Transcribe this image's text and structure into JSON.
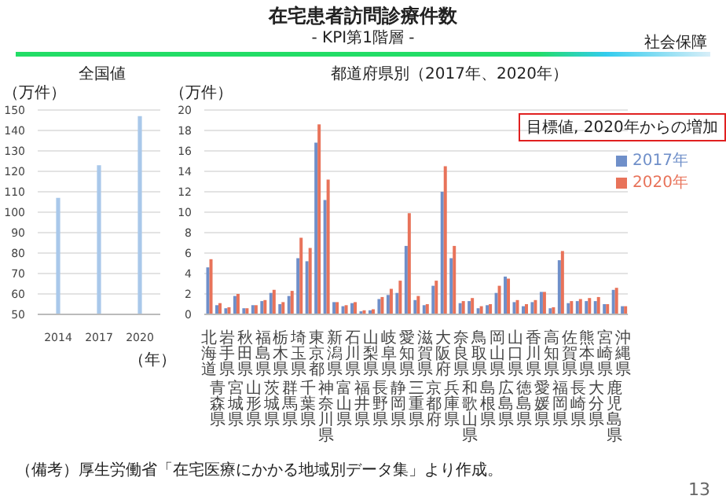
{
  "chart_data": [
    {
      "type": "bar",
      "title": "全国値",
      "ylabel": "（万件）",
      "xlabel": "（年）",
      "categories": [
        "2014",
        "2017",
        "2020"
      ],
      "values": [
        107,
        123,
        147
      ],
      "color": "#a9c8ea",
      "ylim": [
        50,
        150
      ],
      "yticks": [
        50,
        60,
        70,
        80,
        90,
        100,
        110,
        120,
        130,
        140,
        150
      ],
      "grid": "y",
      "annotations": [
        "在宅患者訪問診療件数",
        "- KPI第1階層 -",
        "社会保障"
      ]
    },
    {
      "type": "bar",
      "title": "都道府県別（2017年、2020年）",
      "ylabel": "（万件）",
      "categories": [
        "北海道",
        "青森県",
        "岩手県",
        "宮城県",
        "秋田県",
        "山形県",
        "福島県",
        "茨城県",
        "栃木県",
        "群馬県",
        "埼玉県",
        "千葉県",
        "東京都",
        "神奈川県",
        "新潟県",
        "富山県",
        "石川県",
        "福井県",
        "山梨県",
        "長野県",
        "岐阜県",
        "静岡県",
        "愛知県",
        "三重県",
        "滋賀県",
        "京都府",
        "大阪府",
        "兵庫県",
        "奈良県",
        "和歌山県",
        "鳥取県",
        "島根県",
        "岡山県",
        "広島県",
        "山口県",
        "徳島県",
        "香川県",
        "愛媛県",
        "高知県",
        "福岡県",
        "佐賀県",
        "長崎県",
        "熊本県",
        "大分県",
        "宮崎県",
        "鹿児島県",
        "沖縄県"
      ],
      "series": [
        {
          "name": "2017年",
          "color": "#6f8fc9",
          "values": [
            4.6,
            0.9,
            0.6,
            1.8,
            0.6,
            0.9,
            1.3,
            2.1,
            1.0,
            1.8,
            5.5,
            5.2,
            16.8,
            11.2,
            1.2,
            0.8,
            1.1,
            0.3,
            0.4,
            1.5,
            1.9,
            2.1,
            6.7,
            1.4,
            0.9,
            2.8,
            12.0,
            5.5,
            1.1,
            1.3,
            0.6,
            0.9,
            2.1,
            3.7,
            1.2,
            0.8,
            1.2,
            2.2,
            0.6,
            5.3,
            1.1,
            1.3,
            1.3,
            1.3,
            1.0,
            2.4,
            0.8
          ]
        },
        {
          "name": "2020年",
          "color": "#e8735a",
          "values": [
            5.4,
            1.1,
            0.7,
            2.0,
            0.6,
            0.9,
            1.4,
            2.4,
            1.2,
            2.3,
            7.5,
            6.5,
            18.6,
            13.2,
            1.2,
            0.9,
            1.2,
            0.4,
            0.5,
            1.7,
            2.5,
            3.3,
            9.9,
            1.8,
            1.0,
            3.3,
            14.5,
            6.7,
            1.3,
            1.6,
            0.8,
            1.0,
            2.8,
            3.5,
            1.4,
            1.0,
            1.4,
            2.2,
            0.7,
            6.2,
            1.3,
            1.5,
            1.6,
            1.7,
            1.0,
            2.6,
            0.8
          ]
        }
      ],
      "ylim": [
        0,
        20
      ],
      "yticks": [
        0,
        2,
        4,
        6,
        8,
        10,
        12,
        14,
        16,
        18,
        20
      ],
      "grid": "y",
      "legend": "top right",
      "annotations": [
        "目標値, 2020年からの増加",
        "（備考）厚生労働省「在宅医療にかかる地域別データ集」より作成。",
        "13"
      ]
    }
  ]
}
